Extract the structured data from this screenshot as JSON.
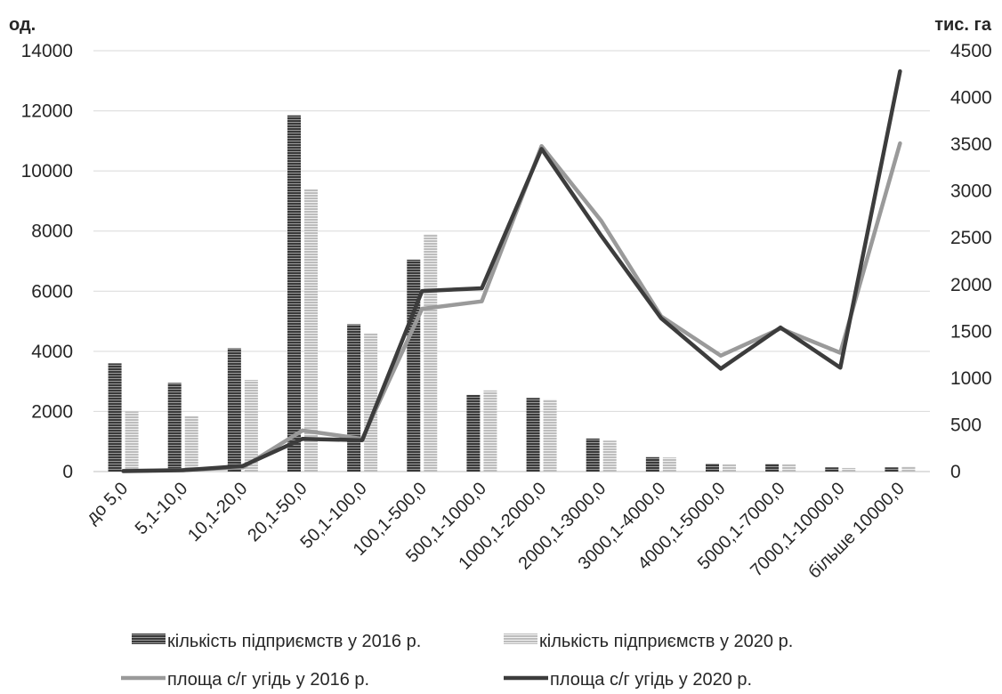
{
  "chart_data": {
    "type": "bar",
    "left_axis_label": "од.",
    "right_axis_label": "тис. га",
    "left_ylim": [
      0,
      14000
    ],
    "left_ticks": [
      0,
      2000,
      4000,
      6000,
      8000,
      10000,
      12000,
      14000
    ],
    "right_ylim": [
      0,
      4500
    ],
    "right_ticks": [
      0,
      500,
      1000,
      1500,
      2000,
      2500,
      3000,
      3500,
      4000,
      4500
    ],
    "grid": true,
    "legend_position": "bottom",
    "categories": [
      "до 5,0",
      "5,1-10,0",
      "10,1-20,0",
      "20,1-50,0",
      "50,1-100,0",
      "100,1-500,0",
      "500,1-1000,0",
      "1000,1-2000,0",
      "2000,1-3000,0",
      "3000,1-4000,0",
      "4000,1-5000,0",
      "5000,1-7000,0",
      "7000,1-10000,0",
      "більше 10000,0"
    ],
    "series": [
      {
        "name": "кількість підприємств у 2016 р.",
        "type": "bar",
        "axis": "left",
        "color": "#5a5a5a",
        "values": [
          3600,
          2950,
          4100,
          11850,
          4900,
          7050,
          2550,
          2450,
          1100,
          480,
          260,
          250,
          140,
          140
        ]
      },
      {
        "name": "кількість підприємств у 2020 р.",
        "type": "bar",
        "axis": "left",
        "color": "#c4c4c4",
        "values": [
          2000,
          1850,
          3050,
          9400,
          4600,
          7900,
          2700,
          2400,
          1030,
          470,
          240,
          240,
          120,
          170
        ]
      },
      {
        "name": "площа с/г угідь у 2016 р.",
        "type": "line",
        "axis": "right",
        "color": "#9a9a9a",
        "values": [
          8,
          17,
          45,
          440,
          350,
          1740,
          1820,
          3480,
          2680,
          1660,
          1240,
          1530,
          1270,
          3510
        ]
      },
      {
        "name": "площа с/г угідь у 2020 р.",
        "type": "line",
        "axis": "right",
        "color": "#3c3c3c",
        "values": [
          5,
          14,
          60,
          350,
          335,
          1930,
          1960,
          3450,
          2520,
          1640,
          1100,
          1540,
          1110,
          4280
        ]
      }
    ]
  }
}
